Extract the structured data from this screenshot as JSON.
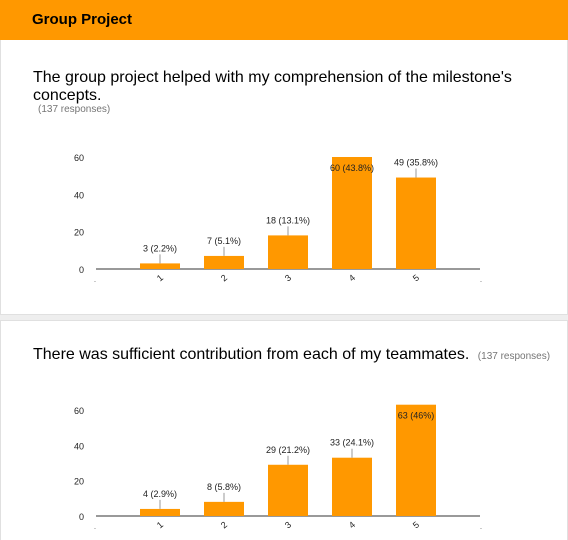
{
  "section": {
    "title": "Group Project"
  },
  "questions": [
    {
      "title": "The group project helped with my comprehension of the milestone's concepts.",
      "responses": "(137 responses)"
    },
    {
      "title": "There was sufficient contribution from each of my teammates.",
      "responses": "(137 responses)"
    }
  ],
  "colors": {
    "accent": "#ff9800",
    "bar": "#ff9800",
    "grid": "#dddddd",
    "text": "#222222"
  },
  "chart_data": [
    {
      "type": "bar",
      "categories": [
        "1",
        "2",
        "3",
        "4",
        "5"
      ],
      "values": [
        3,
        7,
        18,
        60,
        49
      ],
      "data_labels": [
        "3 (2.2%)",
        "7 (5.1%)",
        "18 (13.1%)",
        "60 (43.8%)",
        "49 (35.8%)"
      ],
      "ylim": [
        0,
        60
      ],
      "yticks": [
        0,
        20,
        40,
        60
      ],
      "grid": false,
      "title": "",
      "xlabel": "",
      "ylabel": ""
    },
    {
      "type": "bar",
      "categories": [
        "1",
        "2",
        "3",
        "4",
        "5"
      ],
      "values": [
        4,
        8,
        29,
        33,
        63
      ],
      "data_labels": [
        "4 (2.9%)",
        "8 (5.8%)",
        "29 (21.2%)",
        "33 (24.1%)",
        "63 (46%)"
      ],
      "ylim": [
        0,
        63
      ],
      "yticks": [
        0,
        20,
        40,
        60
      ],
      "grid": false,
      "title": "",
      "xlabel": "",
      "ylabel": ""
    }
  ]
}
